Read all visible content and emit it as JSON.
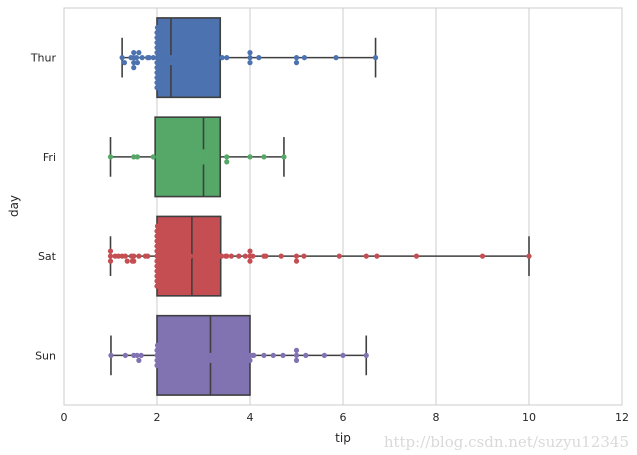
{
  "chart_data": {
    "type": "box",
    "orientation": "horizontal",
    "xlabel": "tip",
    "ylabel": "day",
    "xlim": [
      0,
      12
    ],
    "xticks": [
      0,
      2,
      4,
      6,
      8,
      10,
      12
    ],
    "grid": "vertical",
    "categories": [
      "Thur",
      "Fri",
      "Sat",
      "Sun"
    ],
    "colors": [
      "#4c72b0",
      "#55a868",
      "#c44e52",
      "#8172b2"
    ],
    "box_stats": [
      {
        "day": "Thur",
        "whislo": 1.25,
        "q1": 2.0,
        "med": 2.3,
        "q3": 3.36,
        "whishi": 6.7
      },
      {
        "day": "Fri",
        "whislo": 1.0,
        "q1": 1.96,
        "med": 3.0,
        "q3": 3.36,
        "whishi": 4.73
      },
      {
        "day": "Sat",
        "whislo": 1.0,
        "q1": 2.0,
        "med": 2.75,
        "q3": 3.37,
        "whishi": 10.0
      },
      {
        "day": "Sun",
        "whislo": 1.01,
        "q1": 2.0,
        "med": 3.15,
        "q3": 4.0,
        "whishi": 6.5
      }
    ],
    "points": [
      {
        "day": "Thur",
        "values": [
          1.25,
          1.3,
          1.44,
          1.5,
          1.5,
          1.5,
          1.5,
          1.56,
          1.58,
          1.61,
          1.68,
          1.8,
          1.83,
          1.92,
          2.0,
          2.0,
          2.0,
          2.0,
          2.0,
          2.0,
          2.0,
          2.0,
          2.0,
          2.0,
          2.0,
          2.0,
          2.01,
          2.03,
          2.05,
          2.09,
          2.18,
          2.2,
          2.23,
          2.24,
          2.3,
          2.31,
          2.45,
          2.5,
          2.5,
          2.52,
          2.55,
          2.6,
          2.75,
          3.0,
          3.0,
          3.0,
          3.0,
          3.0,
          3.0,
          3.23,
          3.4,
          3.5,
          4.0,
          4.0,
          4.0,
          4.19,
          5.0,
          5.0,
          5.17,
          5.85,
          6.7
        ]
      },
      {
        "day": "Fri",
        "values": [
          1.0,
          1.5,
          1.58,
          1.92,
          2.2,
          2.5,
          2.5,
          3.0,
          3.0,
          3.0,
          3.09,
          3.25,
          3.5,
          3.5,
          4.0,
          4.3,
          4.73
        ]
      },
      {
        "day": "Sat",
        "values": [
          1.0,
          1.0,
          1.0,
          1.1,
          1.17,
          1.25,
          1.32,
          1.36,
          1.45,
          1.47,
          1.5,
          1.5,
          1.61,
          1.75,
          1.8,
          2.0,
          2.0,
          2.0,
          2.0,
          2.0,
          2.0,
          2.0,
          2.0,
          2.0,
          2.0,
          2.0,
          2.0,
          2.01,
          2.02,
          2.03,
          2.09,
          2.23,
          2.31,
          2.34,
          2.5,
          2.5,
          2.5,
          2.5,
          2.5,
          2.64,
          2.72,
          2.88,
          3.0,
          3.0,
          3.0,
          3.0,
          3.0,
          3.0,
          3.0,
          3.0,
          3.08,
          3.15,
          3.18,
          3.27,
          3.35,
          3.39,
          3.48,
          3.5,
          3.6,
          3.76,
          3.9,
          4.0,
          4.0,
          4.0,
          4.06,
          4.3,
          4.34,
          4.67,
          5.0,
          5.0,
          5.16,
          5.92,
          6.5,
          6.73,
          7.58,
          9.0,
          10.0
        ]
      },
      {
        "day": "Sun",
        "values": [
          1.01,
          1.32,
          1.5,
          1.57,
          1.61,
          1.66,
          2.0,
          2.0,
          2.0,
          2.0,
          2.01,
          2.5,
          2.55,
          2.6,
          2.64,
          3.0,
          3.0,
          3.0,
          3.02,
          3.07,
          3.15,
          3.16,
          3.18,
          3.35,
          3.41,
          3.48,
          3.5,
          3.5,
          3.5,
          3.5,
          3.55,
          3.61,
          3.71,
          3.92,
          4.0,
          4.0,
          4.06,
          4.08,
          4.3,
          4.5,
          4.71,
          5.0,
          5.0,
          5.0,
          5.2,
          5.6,
          6.0,
          6.5
        ]
      }
    ]
  },
  "watermark": "http://blog.csdn.net/suzyu12345"
}
